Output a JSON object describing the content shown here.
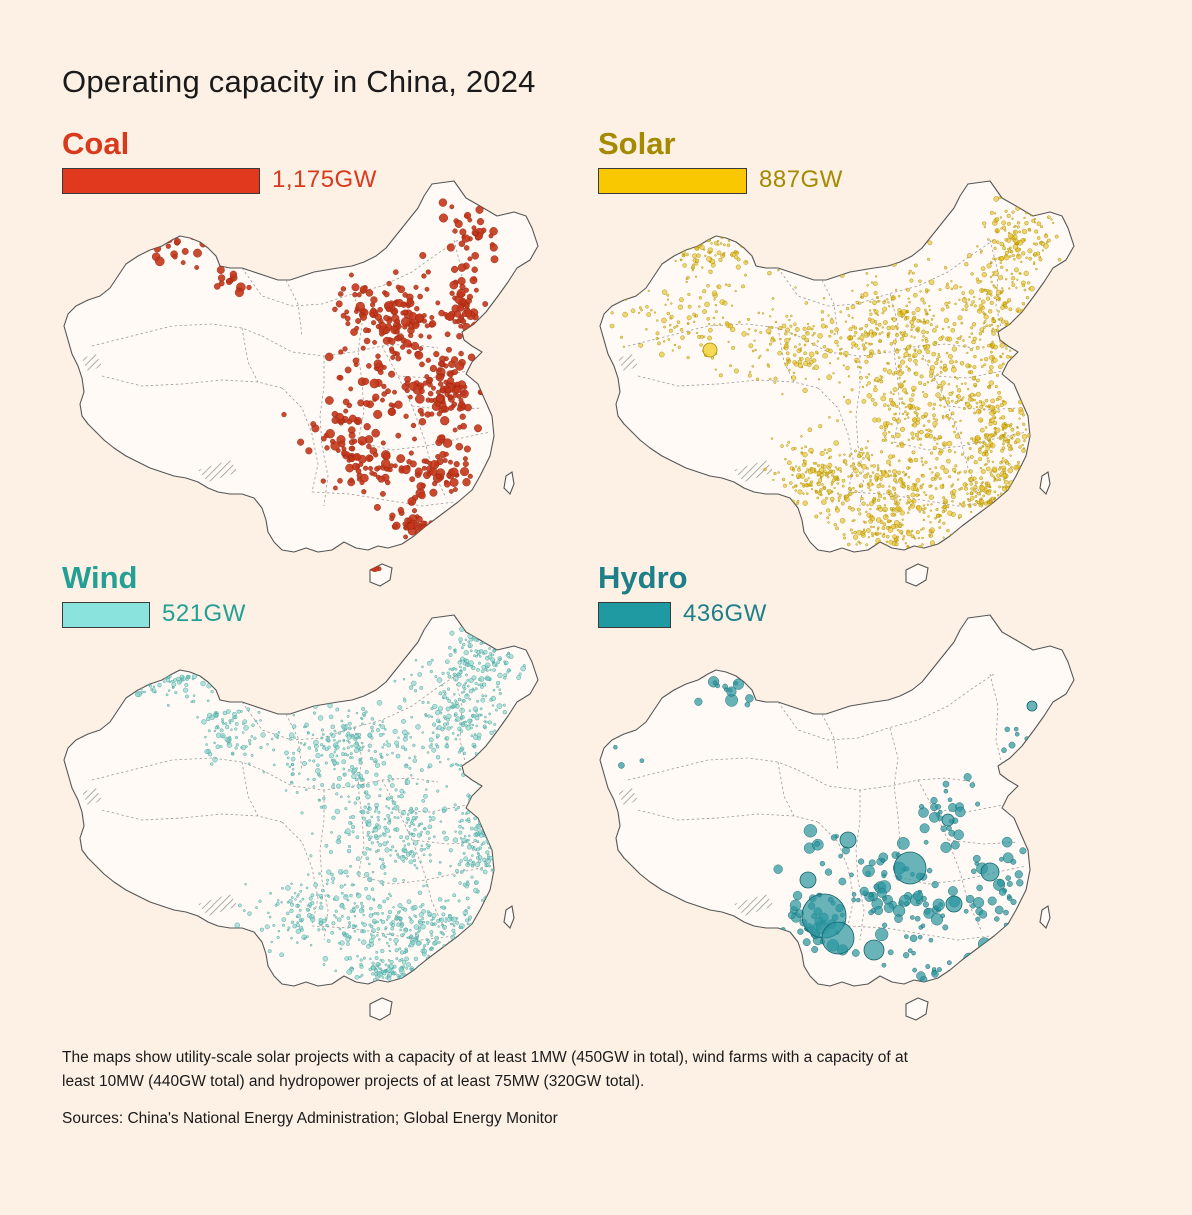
{
  "title": "Operating capacity in China, 2024",
  "max_value_gw": 1175,
  "panels": [
    {
      "key": "coal",
      "label": "Coal",
      "value": 1175,
      "value_text": "1,175GW",
      "color": "#e0391e",
      "text_color": "#d93a1c",
      "dot_fill": "#c4361b",
      "dot_stroke": "#8a200f",
      "density": "high",
      "dot_size": "medium"
    },
    {
      "key": "solar",
      "label": "Solar",
      "value": 887,
      "value_text": "887GW",
      "color": "#f9c800",
      "text_color": "#a58a00",
      "dot_fill": "#e5bd18",
      "dot_stroke": "#a88a00",
      "density": "very-high",
      "dot_size": "small"
    },
    {
      "key": "wind",
      "label": "Wind",
      "value": 521,
      "value_text": "521GW",
      "color": "#8ae3dc",
      "text_color": "#239f94",
      "dot_fill": "#7fcfc8",
      "dot_stroke": "#3d9d96",
      "density": "high",
      "dot_size": "small"
    },
    {
      "key": "hydro",
      "label": "Hydro",
      "value": 436,
      "value_text": "436GW",
      "color": "#1f9aa3",
      "text_color": "#1d7f88",
      "dot_fill": "#2b95a0",
      "dot_stroke": "#13646c",
      "density": "low",
      "dot_size": "large"
    }
  ],
  "note": "The maps show utility-scale solar projects with a capacity of at least 1MW (450GW in total), wind farms with a capacity of at least 10MW (440GW total) and hydropower projects of at least 75MW (320GW total).",
  "source": "Sources: China's National Energy Administration; Global Energy Monitor"
}
